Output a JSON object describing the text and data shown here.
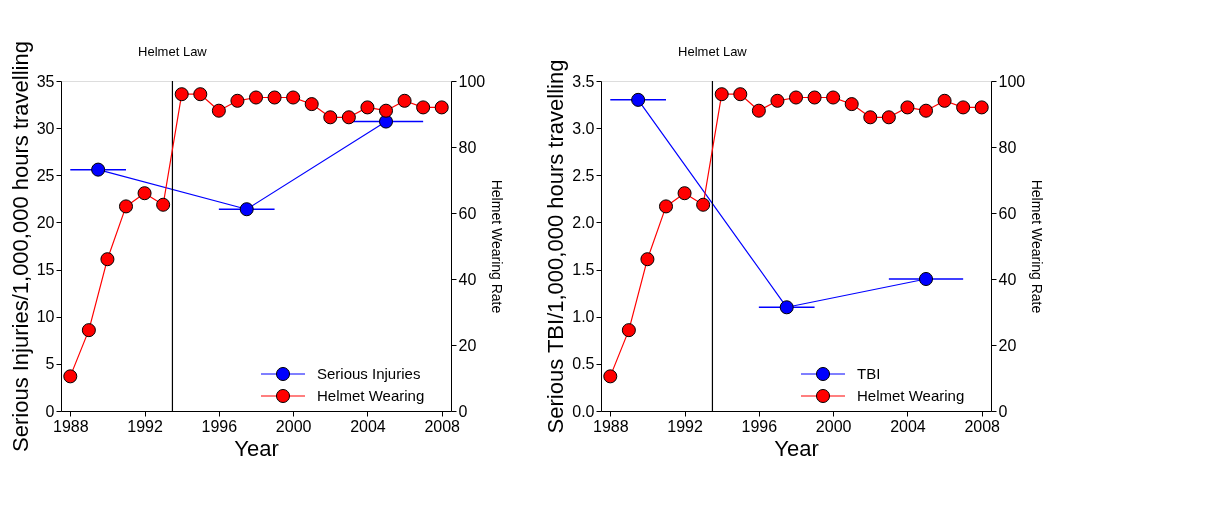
{
  "chart_data": [
    {
      "type": "line",
      "xlabel": "Year",
      "ylabel": "Serious Injuries/1,000,000 hours travelling",
      "y2label": "Helmet Wearing Rate",
      "xlim": [
        1987.5,
        2008.5
      ],
      "xticks": [
        1988,
        1992,
        1996,
        2000,
        2004,
        2008
      ],
      "ylim": [
        0,
        35
      ],
      "yticks": [
        0,
        5,
        10,
        15,
        20,
        25,
        30,
        35
      ],
      "y2lim": [
        0,
        100
      ],
      "y2ticks": [
        0,
        20,
        40,
        60,
        80,
        100
      ],
      "grid": false,
      "legend": "bottom right",
      "marker": "circle",
      "line_style": "solid",
      "ref_lines": [
        {
          "axis": "x",
          "value": 1993.5,
          "label": "Helmet Law",
          "color": "#000000"
        }
      ],
      "series": [
        {
          "name": "Serious Injuries",
          "color": "#0000ff",
          "x": [
            1989.5,
            1997.5,
            2005
          ],
          "values": [
            25.6,
            21.4,
            30.7
          ],
          "xerrors": [
            1.5,
            1.5,
            2
          ]
        },
        {
          "name": "Helmet Wearing",
          "color": "#ff0000",
          "axis": "y2",
          "x": [
            1988,
            1989,
            1990,
            1991,
            1992,
            1993,
            1994,
            1995,
            1996,
            1997,
            1998,
            1999,
            2000,
            2001,
            2002,
            2003,
            2004,
            2005,
            2006,
            2007,
            2008
          ],
          "values": [
            10.5,
            24.5,
            46,
            62,
            66,
            62.5,
            96,
            96,
            91,
            94,
            95,
            95,
            95,
            93,
            89,
            89,
            92,
            91,
            94,
            92,
            92
          ]
        }
      ]
    },
    {
      "type": "line",
      "xlabel": "Year",
      "ylabel": "Serious TBI/1,000,000 hours travelling",
      "y2label": "Helmet Wearing Rate",
      "xlim": [
        1987.5,
        2008.5
      ],
      "xticks": [
        1988,
        1992,
        1996,
        2000,
        2004,
        2008
      ],
      "ylim": [
        0,
        3.5
      ],
      "yticks": [
        {
          "value": 0,
          "label": "0.0"
        },
        0.5,
        {
          "value": 1,
          "label": "1.0"
        },
        1.5,
        {
          "value": 2,
          "label": "2.0"
        },
        2.5,
        {
          "value": 3,
          "label": "3.0"
        },
        3.5
      ],
      "y2lim": [
        0,
        100
      ],
      "y2ticks": [
        0,
        20,
        40,
        60,
        80,
        100
      ],
      "grid": false,
      "legend": "bottom right",
      "marker": "circle",
      "line_style": "solid",
      "ref_lines": [
        {
          "axis": "x",
          "value": 1993.5,
          "label": "Helmet Law",
          "color": "#000000"
        }
      ],
      "series": [
        {
          "name": "TBI",
          "color": "#0000ff",
          "x": [
            1989.5,
            1997.5,
            2005
          ],
          "values": [
            3.3,
            1.1,
            1.4
          ],
          "xerrors": [
            1.5,
            1.5,
            2
          ]
        },
        {
          "name": "Helmet Wearing",
          "color": "#ff0000",
          "axis": "y2",
          "x": [
            1988,
            1989,
            1990,
            1991,
            1992,
            1993,
            1994,
            1995,
            1996,
            1997,
            1998,
            1999,
            2000,
            2001,
            2002,
            2003,
            2004,
            2005,
            2006,
            2007,
            2008
          ],
          "values": [
            10.5,
            24.5,
            46,
            62,
            66,
            62.5,
            96,
            96,
            91,
            94,
            95,
            95,
            95,
            93,
            89,
            89,
            92,
            91,
            94,
            92,
            92
          ]
        }
      ]
    }
  ]
}
